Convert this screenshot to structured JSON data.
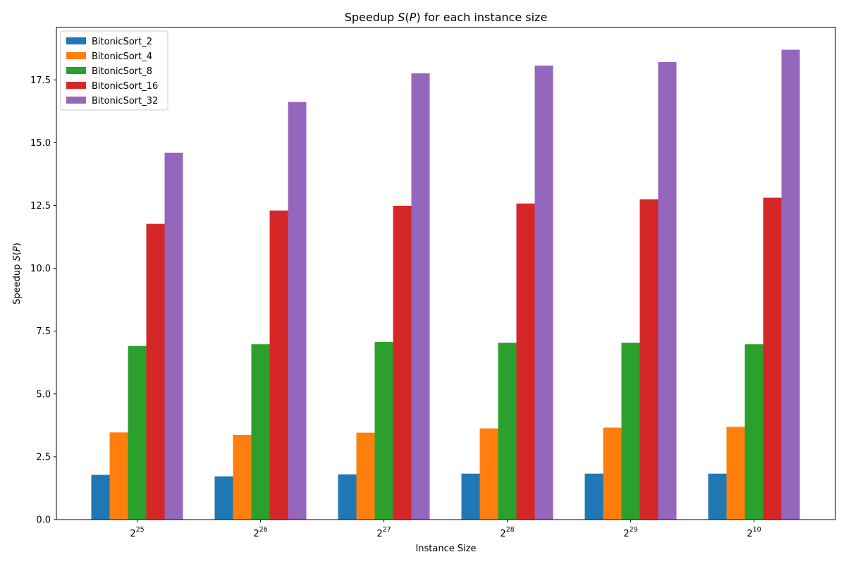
{
  "chart_data": {
    "type": "bar",
    "title": "Speedup S(P) for each instance size",
    "title_parts": [
      {
        "text": "Speedup ",
        "italic": false
      },
      {
        "text": "S",
        "italic": true
      },
      {
        "text": "(",
        "italic": false
      },
      {
        "text": "P",
        "italic": true
      },
      {
        "text": ") for each instance size",
        "italic": false
      }
    ],
    "xlabel": "Instance Size",
    "ylabel": "Speedup S(P)",
    "ylabel_parts": [
      {
        "text": "Speedup ",
        "italic": false
      },
      {
        "text": "S",
        "italic": true
      },
      {
        "text": "(",
        "italic": false
      },
      {
        "text": "P",
        "italic": true
      },
      {
        "text": ")",
        "italic": false
      }
    ],
    "categories": [
      {
        "base": "2",
        "exp": "25"
      },
      {
        "base": "2",
        "exp": "26"
      },
      {
        "base": "2",
        "exp": "27"
      },
      {
        "base": "2",
        "exp": "28"
      },
      {
        "base": "2",
        "exp": "29"
      },
      {
        "base": "2",
        "exp": "10"
      }
    ],
    "ylim": [
      0,
      19.6
    ],
    "yticks": [
      "0.0",
      "2.5",
      "5.0",
      "7.5",
      "10.0",
      "12.5",
      "15.0",
      "17.5"
    ],
    "grid": false,
    "legend_position": "top-left",
    "series": [
      {
        "name": "BitonicSort_2",
        "color": "#1f77b4",
        "values": [
          1.78,
          1.72,
          1.8,
          1.83,
          1.83,
          1.83
        ]
      },
      {
        "name": "BitonicSort_4",
        "color": "#ff7f0e",
        "values": [
          3.47,
          3.37,
          3.46,
          3.63,
          3.66,
          3.69
        ]
      },
      {
        "name": "BitonicSort_8",
        "color": "#2ca02c",
        "values": [
          6.91,
          6.98,
          7.07,
          7.04,
          7.04,
          6.98
        ]
      },
      {
        "name": "BitonicSort_16",
        "color": "#d62728",
        "values": [
          11.77,
          12.3,
          12.49,
          12.58,
          12.75,
          12.81
        ]
      },
      {
        "name": "BitonicSort_32",
        "color": "#9467bd",
        "values": [
          14.6,
          16.62,
          17.76,
          18.07,
          18.21,
          18.7
        ]
      }
    ]
  }
}
